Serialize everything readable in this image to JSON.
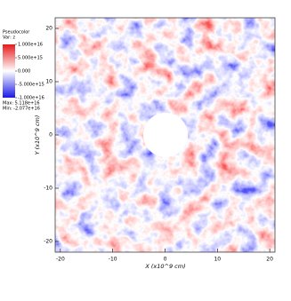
{
  "chart_data": {
    "type": "heatmap",
    "title": "Pseudocolor",
    "subtitle": "Var: z",
    "x_label": "X (x10^9 cm)",
    "y_label": "Y (x10^9 cm)",
    "xlim": [
      -21,
      21
    ],
    "ylim": [
      -22,
      22
    ],
    "xticks": [
      -20,
      -10,
      0,
      10,
      20
    ],
    "yticks": [
      -20,
      -10,
      0,
      10,
      20
    ],
    "colorbar": {
      "lim": [
        -10000000000000000,
        10000000000000000
      ],
      "colors": [
        "#1a1ae6",
        "#ffffff",
        "#e61a1a"
      ],
      "ticks": [
        {
          "value": 10000000000000000,
          "label": "1.000e+16"
        },
        {
          "value": 5000000000000000,
          "label": "5.000e+15"
        },
        {
          "value": 0,
          "label": "0.000"
        },
        {
          "value": -5000000000000000,
          "label": "-5.000e+15"
        },
        {
          "value": -10000000000000000,
          "label": "-1.000e+16"
        }
      ]
    },
    "max_label": "Max: 5.118e+16",
    "min_label": "Min: -2.077e+16"
  }
}
